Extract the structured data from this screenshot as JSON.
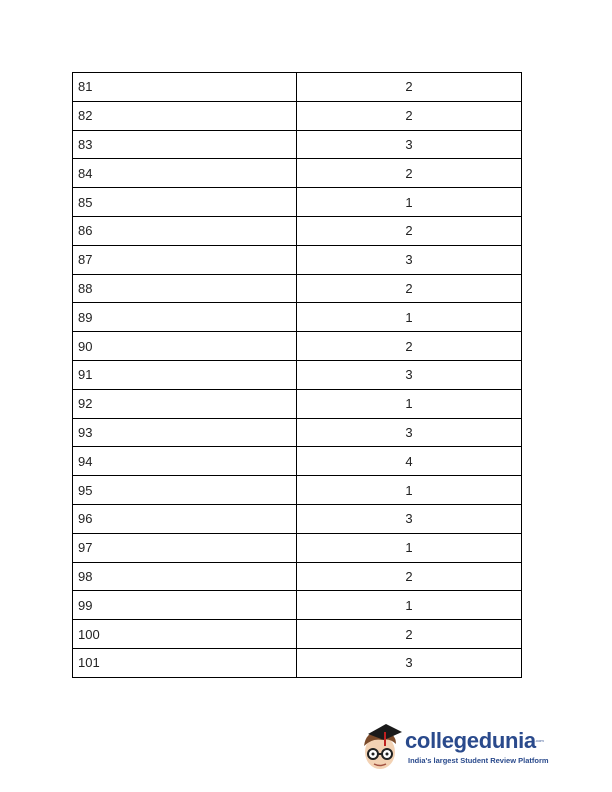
{
  "table": {
    "rows": [
      [
        "81",
        "2"
      ],
      [
        "82",
        "2"
      ],
      [
        "83",
        "3"
      ],
      [
        "84",
        "2"
      ],
      [
        "85",
        "1"
      ],
      [
        "86",
        "2"
      ],
      [
        "87",
        "3"
      ],
      [
        "88",
        "2"
      ],
      [
        "89",
        "1"
      ],
      [
        "90",
        "2"
      ],
      [
        "91",
        "3"
      ],
      [
        "92",
        "1"
      ],
      [
        "93",
        "3"
      ],
      [
        "94",
        "4"
      ],
      [
        "95",
        "1"
      ],
      [
        "96",
        "3"
      ],
      [
        "97",
        "1"
      ],
      [
        "98",
        "2"
      ],
      [
        "99",
        "1"
      ],
      [
        "100",
        "2"
      ],
      [
        "101",
        "3"
      ]
    ]
  },
  "logo": {
    "brand": "collegedunia",
    "dotcom": ".com",
    "tagline": "India's largest Student Review Platform",
    "brand_color": "#2a4a8c"
  }
}
